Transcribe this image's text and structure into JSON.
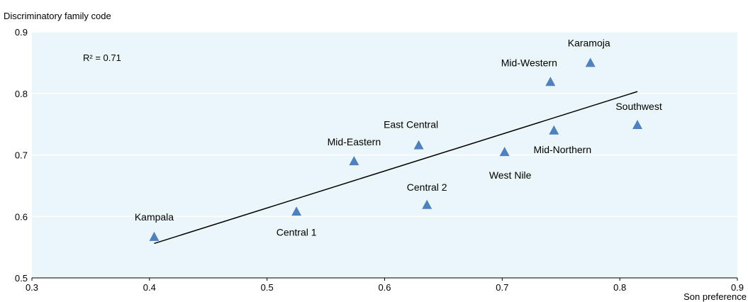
{
  "chart_data": {
    "type": "scatter",
    "ylabel": "Discriminatory family code",
    "xlabel": "Son preference",
    "xlim": [
      0.3,
      0.9
    ],
    "ylim": [
      0.5,
      0.9
    ],
    "xticks": [
      "0.3",
      "0.4",
      "0.5",
      "0.6",
      "0.7",
      "0.8",
      "0.9"
    ],
    "yticks": [
      "0.5",
      "0.6",
      "0.7",
      "0.8",
      "0.9"
    ],
    "grid": "horizontal",
    "plot_background": "#eaf6fa",
    "marker_color": "#4f81bd",
    "annotation": "R² = 0.71",
    "trendline": {
      "x": [
        0.404,
        0.815
      ],
      "y": [
        0.556,
        0.803
      ]
    },
    "points": [
      {
        "label": "Kampala",
        "x": 0.404,
        "y": 0.567
      },
      {
        "label": "Central 1",
        "x": 0.525,
        "y": 0.608
      },
      {
        "label": "Mid-Eastern",
        "x": 0.574,
        "y": 0.69
      },
      {
        "label": "East Central",
        "x": 0.629,
        "y": 0.716
      },
      {
        "label": "Central 2",
        "x": 0.636,
        "y": 0.619
      },
      {
        "label": "West Nile",
        "x": 0.702,
        "y": 0.705
      },
      {
        "label": "Mid-Western",
        "x": 0.741,
        "y": 0.819
      },
      {
        "label": "Mid-Northern",
        "x": 0.744,
        "y": 0.74
      },
      {
        "label": "Karamoja",
        "x": 0.775,
        "y": 0.85
      },
      {
        "label": "Southwest",
        "x": 0.815,
        "y": 0.749
      }
    ]
  }
}
